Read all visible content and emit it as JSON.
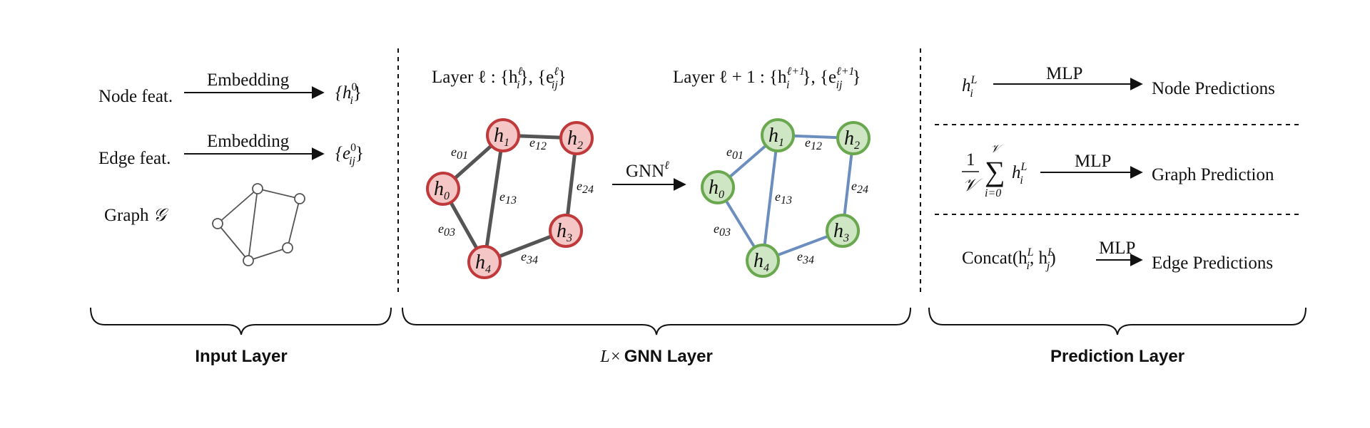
{
  "input_layer": {
    "node_feat_label": "Node feat.",
    "edge_feat_label": "Edge feat.",
    "graph_label": "Graph",
    "graph_symbol": "𝒢",
    "embedding_label": "Embedding",
    "node_output": "{h",
    "node_output_sup": "0",
    "node_output_sub": "i",
    "edge_output": "{e",
    "edge_output_sup": "0",
    "edge_output_sub": "ij",
    "close_brace": "}",
    "section_title": "Input Layer"
  },
  "gnn_layer": {
    "layer_l_caption": "Layer ℓ : {h",
    "layer_l_caption_sup": "ℓ",
    "layer_l_caption_sub": "i",
    "layer_l_caption_mid": "}, {e",
    "layer_l_caption_sup2": "ℓ",
    "layer_l_caption_sub2": "ij",
    "layer_l_caption_end": "}",
    "layer_l1_caption": "Layer ℓ + 1 : {h",
    "layer_l1_caption_sup": "ℓ+1",
    "layer_l1_caption_sub": "i",
    "layer_l1_caption_mid": "}, {e",
    "layer_l1_caption_sup2": "ℓ+1",
    "layer_l1_caption_sub2": "ij",
    "layer_l1_caption_end": "}",
    "gnn_op": "GNN",
    "gnn_op_sup": "ℓ",
    "section_title_prefix": "L×",
    "section_title": "GNN Layer",
    "nodes": [
      {
        "name": "h",
        "index": "0"
      },
      {
        "name": "h",
        "index": "1"
      },
      {
        "name": "h",
        "index": "2"
      },
      {
        "name": "h",
        "index": "3"
      },
      {
        "name": "h",
        "index": "4"
      }
    ],
    "edges": [
      {
        "label": "e",
        "index": "01"
      },
      {
        "label": "e",
        "index": "12"
      },
      {
        "label": "e",
        "index": "13"
      },
      {
        "label": "e",
        "index": "24"
      },
      {
        "label": "e",
        "index": "03"
      },
      {
        "label": "e",
        "index": "34"
      }
    ],
    "colors": {
      "input_node_fill": "#f4c6c6",
      "input_node_stroke": "#c0393b",
      "input_edge": "#555555",
      "output_node_fill": "#cfe6c4",
      "output_node_stroke": "#6aa84f",
      "output_edge": "#6c8ebf"
    }
  },
  "prediction_layer": {
    "node_input": "h",
    "node_input_sub": "i",
    "node_input_sup": "L",
    "mlp_label": "MLP",
    "node_predictions": "Node Predictions",
    "graph_frac_num": "1",
    "graph_frac_den": "𝒱",
    "graph_sum_top": "𝒱",
    "graph_sum_bottom": "i=0",
    "graph_term": "h",
    "graph_term_sub": "i",
    "graph_term_sup": "L",
    "graph_prediction": "Graph Prediction",
    "concat_label": "Concat(h",
    "concat_sub1": "i",
    "concat_sup1": "L",
    "concat_mid": ", h",
    "concat_sub2": "j",
    "concat_sup2": "L",
    "concat_end": ")",
    "edge_predictions": "Edge Predictions",
    "section_title": "Prediction Layer"
  }
}
